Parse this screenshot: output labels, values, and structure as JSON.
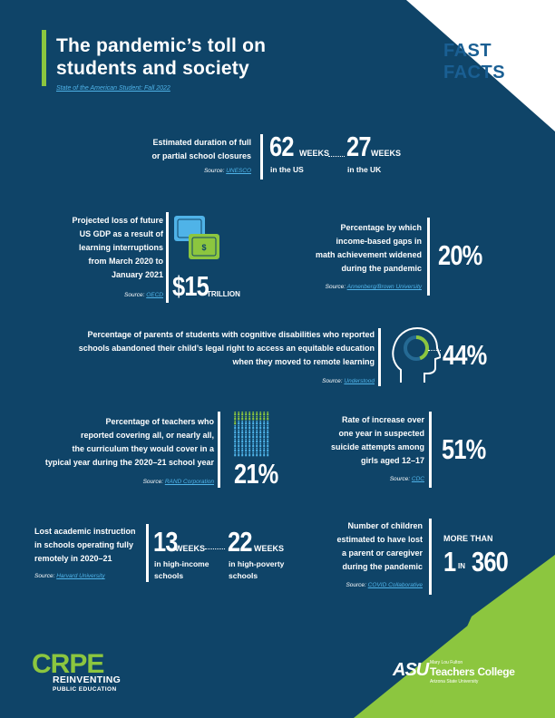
{
  "header": {
    "title_line1": "The pandemic’s toll on",
    "title_line2": "students and society",
    "subtitle": "State of the American Student: Fall 2022",
    "fast_facts_line1": "FAST",
    "fast_facts_line2": "FACTS"
  },
  "facts": {
    "closures": {
      "label_line1": "Estimated duration of full",
      "label_line2": "or partial school closures",
      "source_prefix": "Source: ",
      "source_link": "UNESCO",
      "us_value": "62",
      "us_unit": "WEEKS",
      "us_label": "in the US",
      "uk_value": "27",
      "uk_unit": "WEEKS",
      "uk_label": "in the UK"
    },
    "gdp": {
      "label_lines": [
        "Projected loss of future",
        "US GDP as a result of",
        "learning interruptions",
        "from March 2020 to",
        "January 2021"
      ],
      "source_prefix": "Source: ",
      "source_link": "OECD",
      "value": "$15",
      "unit": "TRILLION"
    },
    "math_gap": {
      "label_lines": [
        "Percentage by which",
        "income-based gaps in",
        "math achievement widened",
        "during the pandemic"
      ],
      "source_prefix": "Source: ",
      "source_link": "Annenberg/Brown University",
      "value": "20%"
    },
    "disabilities": {
      "label_line1": "Percentage of parents of students with cognitive disabilities who reported",
      "label_line2": "schools abandoned their child’s legal right to access an equitable education",
      "label_line3": "when they moved to remote learning",
      "source_prefix": "Source: ",
      "source_link": "Understood",
      "value": "44%",
      "share": 0.44
    },
    "curriculum": {
      "label_lines": [
        "Percentage of teachers who",
        "reported covering all, or nearly all,",
        "the curriculum they would cover in a",
        "typical year during the 2020–21 school year"
      ],
      "source_prefix": "Source: ",
      "source_link": "RAND Corporation",
      "value": "21%",
      "share": 0.21
    },
    "suicide": {
      "label_lines": [
        "Rate of increase over",
        "one year in suspected",
        "suicide attempts among",
        "girls aged 12–17"
      ],
      "source_prefix": "Source: ",
      "source_link": "CDC",
      "value": "51%"
    },
    "instruction": {
      "label_lines": [
        "Lost academic instruction",
        "in schools operating fully",
        "remotely in 2020–21"
      ],
      "source_prefix": "Source: ",
      "source_link": "Harvard University",
      "low_value": "13",
      "low_unit": "WEEKS",
      "low_label_line1": "in high-income",
      "low_label_line2": "schools",
      "high_value": "22",
      "high_unit": "WEEKS",
      "high_label_line1": "in high-poverty",
      "high_label_line2": "schools"
    },
    "caregiver": {
      "label_lines": [
        "Number of children",
        "estimated to have lost",
        "a parent or caregiver",
        "during the pandemic"
      ],
      "source_prefix": "Source: ",
      "source_link": "COVID Collaborative",
      "more_than": "MORE THAN",
      "one": "1",
      "in": "IN",
      "value": "360"
    }
  },
  "footer": {
    "crpe_logo": "CRPE",
    "crpe_line1": "REINVENTING",
    "crpe_line2": "PUBLIC EDUCATION",
    "asu_mark": "ASU",
    "asu_line1": "Mary Lou Fulton",
    "asu_line2": "Teachers College",
    "asu_line3": "Arizona State University"
  },
  "colors": {
    "background": "#0f4468",
    "accent_green": "#8cc63f",
    "link_blue": "#4fb3e8",
    "title_blue": "#1a5f93"
  },
  "icons": [
    "money-stack-icon",
    "head-progress-icon",
    "teacher-grid-icon"
  ]
}
